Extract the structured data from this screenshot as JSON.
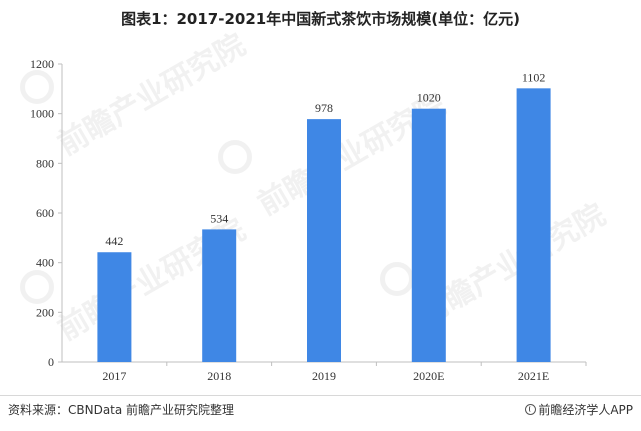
{
  "title": "图表1：2017-2021年中国新式茶饮市场规模(单位：亿元)",
  "source": "资料来源：CBNData 前瞻产业研究院整理",
  "brand": "前瞻经济学人APP",
  "watermark_text": "前瞻产业研究院",
  "colors": {
    "bar": "#3f87e5",
    "axis": "#bfbfbf",
    "text": "#333333"
  },
  "chart_data": {
    "type": "bar",
    "categories": [
      "2017",
      "2018",
      "2019",
      "2020E",
      "2021E"
    ],
    "values": [
      442,
      534,
      978,
      1020,
      1102
    ],
    "ylim": [
      0,
      1200
    ],
    "yticks": [
      0,
      200,
      400,
      600,
      800,
      1000,
      1200
    ],
    "grid": false,
    "data_labels": true
  }
}
